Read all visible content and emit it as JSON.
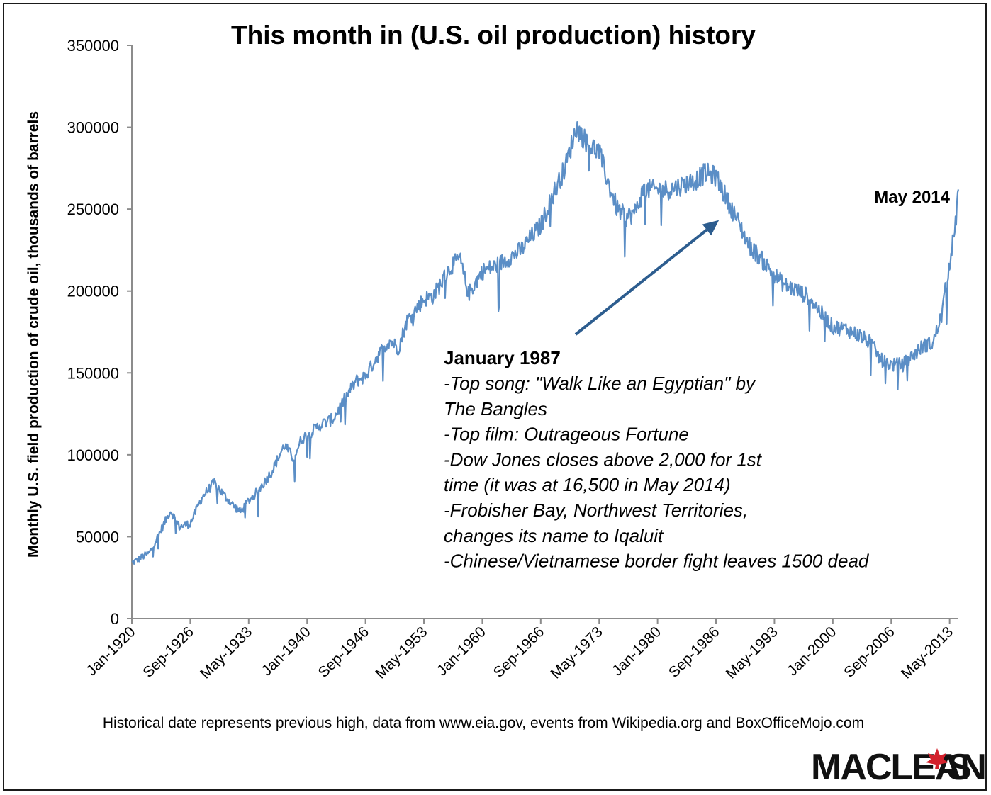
{
  "chart_data": {
    "type": "line",
    "title": "This month in (U.S. oil production) history",
    "ylabel": "Monthly U.S. field production of crude oil, thousands of barrels",
    "xlabel": "",
    "ylim": [
      0,
      350000
    ],
    "y_ticks": [
      "0",
      "50000",
      "100000",
      "150000",
      "200000",
      "250000",
      "300000",
      "350000"
    ],
    "x_ticks": [
      "Jan-1920",
      "Sep-1926",
      "May-1933",
      "Jan-1940",
      "Sep-1946",
      "May-1953",
      "Jan-1960",
      "Sep-1966",
      "May-1973",
      "Jan-1980",
      "Sep-1986",
      "May-1993",
      "Jan-2000",
      "Sep-2006",
      "May-2013"
    ],
    "grid": false,
    "legend": "none",
    "series_color": "#5b8ec6",
    "series": [
      {
        "name": "",
        "x": [
          "1920-01",
          "1922-01",
          "1923-06",
          "1924-06",
          "1925-06",
          "1926-09",
          "1928-01",
          "1929-06",
          "1930-06",
          "1931-06",
          "1932-06",
          "1933-05",
          "1934-06",
          "1936-01",
          "1937-06",
          "1938-06",
          "1939-06",
          "1940-01",
          "1941-06",
          "1943-01",
          "1944-06",
          "1945-08",
          "1946-09",
          "1948-01",
          "1949-06",
          "1950-06",
          "1951-06",
          "1953-05",
          "1954-06",
          "1956-06",
          "1957-06",
          "1958-06",
          "1960-01",
          "1961-06",
          "1963-01",
          "1964-06",
          "1965-06",
          "1966-09",
          "1968-01",
          "1969-06",
          "1970-10",
          "1972-01",
          "1973-05",
          "1974-06",
          "1975-06",
          "1976-06",
          "1977-06",
          "1978-06",
          "1980-01",
          "1981-06",
          "1983-01",
          "1984-06",
          "1985-06",
          "1986-09",
          "1988-01",
          "1989-06",
          "1990-06",
          "1991-06",
          "1993-05",
          "1994-06",
          "1996-01",
          "1997-06",
          "1998-06",
          "2000-01",
          "2001-06",
          "2003-01",
          "2004-06",
          "2005-06",
          "2006-09",
          "2008-01",
          "2009-06",
          "2010-06",
          "2011-06",
          "2012-06",
          "2013-05",
          "2014-01",
          "2014-05"
        ],
        "y": [
          34000,
          40000,
          55000,
          66000,
          56000,
          58000,
          74000,
          83000,
          76000,
          70000,
          65000,
          72000,
          78000,
          90000,
          106000,
          98000,
          110000,
          112000,
          118000,
          122000,
          135000,
          145000,
          148000,
          160000,
          170000,
          165000,
          182000,
          195000,
          197000,
          215000,
          220000,
          198000,
          212000,
          215000,
          220000,
          225000,
          232000,
          240000,
          258000,
          275000,
          300000,
          290000,
          285000,
          265000,
          250000,
          245000,
          248000,
          262000,
          262000,
          262000,
          265000,
          268000,
          272000,
          270000,
          255000,
          240000,
          228000,
          222000,
          210000,
          204000,
          200000,
          196000,
          188000,
          178000,
          177000,
          173000,
          168000,
          158000,
          155000,
          155000,
          162000,
          167000,
          168000,
          185000,
          218000,
          240000,
          262000
        ]
      }
    ],
    "end_label": "May 2014",
    "annotation": {
      "heading": "January 1987",
      "lines": [
        "-Top song: \"Walk Like an Egyptian\" by",
        "The Bangles",
        "-Top film: Outrageous Fortune",
        "-Dow Jones closes above 2,000 for 1st",
        "time (it was at 16,500 in May 2014)",
        "-Frobisher Bay, Northwest Territories,",
        "changes its name to Iqaluit",
        "-Chinese/Vietnamese border fight leaves 1500 dead"
      ],
      "arrow_target_x": "1987-01",
      "arrow_target_y": 245000,
      "arrow_color": "#2d5d8f"
    }
  },
  "footer": {
    "source": "Historical date represents previous high, data from www.eia.gov, events from Wikipedia.org and  BoxOfficeMojo.com"
  },
  "logo": {
    "text_before": "MACLEAN",
    "text_after": "S",
    "leaf_color": "#d3212c"
  }
}
